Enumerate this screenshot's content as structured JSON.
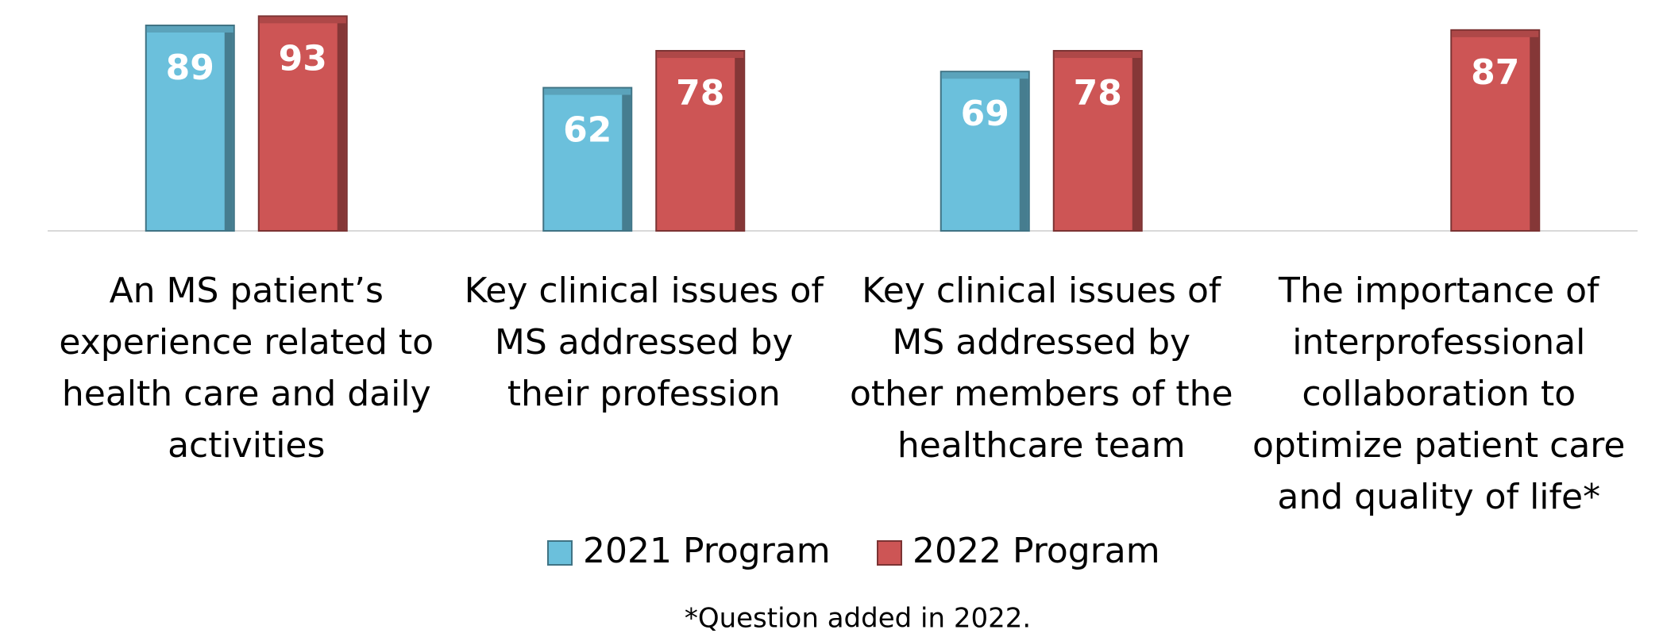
{
  "chart_data": {
    "type": "bar",
    "categories": [
      "An MS patient’s experience related to health care and daily activities",
      "Key clinical issues of MS addressed by their profession",
      "Key clinical issues of MS addressed by other members of the healthcare team",
      "The importance of interprofessional collaboration to optimize patient care and quality of life*"
    ],
    "series": [
      {
        "name": "2021 Program",
        "color": "#6bc0dc",
        "values": [
          89,
          62,
          69,
          null
        ]
      },
      {
        "name": "2022 Program",
        "color": "#cd5555",
        "values": [
          93,
          78,
          78,
          87
        ]
      }
    ],
    "ylim": [
      0,
      100
    ],
    "legend": "bottom",
    "footnote": "*Question added in 2022."
  }
}
